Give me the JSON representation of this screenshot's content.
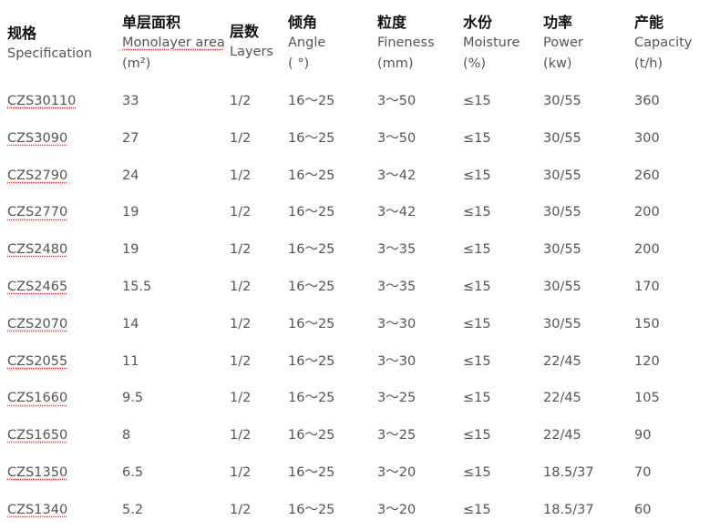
{
  "headers": [
    {
      "zh": "规格",
      "en": "Specification",
      "unit": ""
    },
    {
      "zh": "单层面积",
      "en": "Monolayer area",
      "unit": "(m²)"
    },
    {
      "zh": "层数",
      "en": "Layers",
      "unit": ""
    },
    {
      "zh": "倾角",
      "en": "Angle",
      "unit": "( °)"
    },
    {
      "zh": "粒度",
      "en": "Fineness",
      "unit": "(mm)"
    },
    {
      "zh": "水份",
      "en": "Moisture",
      "unit": "(%)"
    },
    {
      "zh": "功率",
      "en": "Power",
      "unit": "(kw)"
    },
    {
      "zh": "产能",
      "en": "Capacity",
      "unit": "(t/h)"
    }
  ],
  "rows": [
    [
      "CZS30110",
      "33",
      "1/2",
      "16～25",
      "3～50",
      "≤15",
      "30/55",
      "360"
    ],
    [
      "CZS3090",
      "27",
      "1/2",
      "16～25",
      "3～50",
      "≤15",
      "30/55",
      "300"
    ],
    [
      "CZS2790",
      "24",
      "1/2",
      "16～25",
      "3～42",
      "≤15",
      "30/55",
      "260"
    ],
    [
      "CZS2770",
      "19",
      "1/2",
      "16～25",
      "3～42",
      "≤15",
      "30/55",
      "200"
    ],
    [
      "CZS2480",
      "19",
      "1/2",
      "16～25",
      "3～35",
      "≤15",
      "30/55",
      "200"
    ],
    [
      "CZS2465",
      "15.5",
      "1/2",
      "16～25",
      "3～35",
      "≤15",
      "30/55",
      "170"
    ],
    [
      "CZS2070",
      "14",
      "1/2",
      "16～25",
      "3～30",
      "≤15",
      "30/55",
      "150"
    ],
    [
      "CZS2055",
      "11",
      "1/2",
      "16～25",
      "3～30",
      "≤15",
      "22/45",
      "120"
    ],
    [
      "CZS1660",
      "9.5",
      "1/2",
      "16～25",
      "3～25",
      "≤15",
      "22/45",
      "105"
    ],
    [
      "CZS1650",
      "8",
      "1/2",
      "16～25",
      "3～25",
      "≤15",
      "22/45",
      "90"
    ],
    [
      "CZS1350",
      "6.5",
      "1/2",
      "16～25",
      "3～20",
      "≤15",
      "18.5/37",
      "70"
    ],
    [
      "CZS1340",
      "5.2",
      "1/2",
      "16～25",
      "3～20",
      "≤15",
      "18.5/37",
      "60"
    ]
  ]
}
